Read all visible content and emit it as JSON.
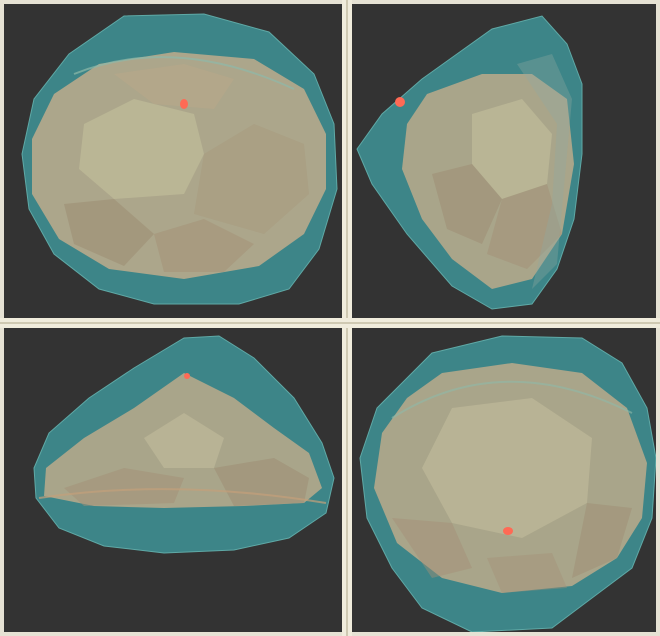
{
  "window": {
    "colors": {
      "background": "#333333",
      "divider": "#e6e2d4",
      "outer_shell": "#3f8d8f",
      "inner_body": "#b9a98a",
      "marker": "#ff6a55"
    }
  },
  "viewports": [
    {
      "id": "top-view"
    },
    {
      "id": "side-view"
    },
    {
      "id": "front-view"
    },
    {
      "id": "bottom-view"
    }
  ]
}
